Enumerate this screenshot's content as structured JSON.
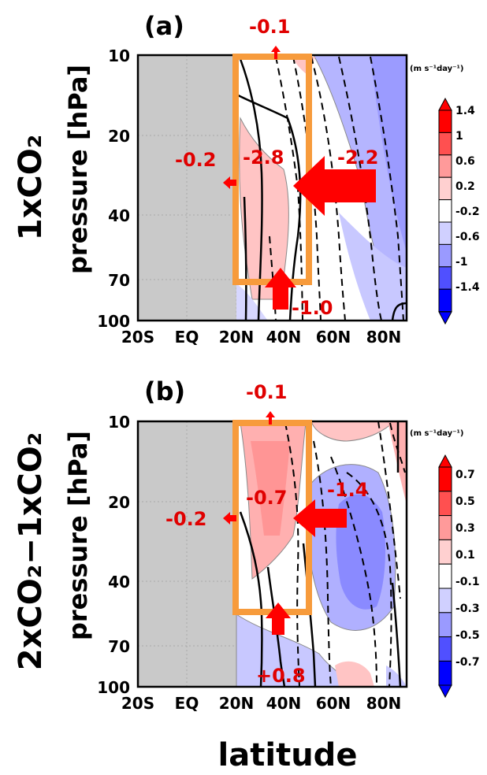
{
  "figure": {
    "xlabel": "latitude",
    "colors": {
      "land_mask": "#c9c9c9",
      "box": "#f79b3c",
      "arrow": "#ff0000",
      "annotation": "#e00000",
      "contour": "#000000"
    }
  },
  "chart_data": [
    {
      "type": "heatmap",
      "panel_label": "(a)",
      "row_label": "1xCO₂",
      "ylabel": "pressure [hPa]",
      "xlabel": "",
      "units": "(m s⁻¹day⁻¹)",
      "x_ticks": [
        "20S",
        "EQ",
        "20N",
        "40N",
        "60N",
        "80N"
      ],
      "x_tick_values": [
        -20,
        0,
        20,
        40,
        60,
        80
      ],
      "xlim": [
        -20,
        90
      ],
      "y_ticks": [
        "10",
        "20",
        "40",
        "70",
        "100"
      ],
      "y_tick_values": [
        10,
        20,
        40,
        70,
        100
      ],
      "ylim": [
        100,
        10
      ],
      "y_scale": "log",
      "masked_region_lat": [
        -20,
        20
      ],
      "box": {
        "lat": [
          20,
          50
        ],
        "pressure": [
          10,
          70
        ]
      },
      "colorbar": {
        "levels": [
          "1.4",
          "1",
          "0.6",
          "0.2",
          "-0.2",
          "-0.6",
          "-1",
          "-1.4"
        ],
        "colors": [
          "#ff0000",
          "#ff5050",
          "#ff9a9a",
          "#ffd0d0",
          "#ffffff",
          "#d0d0ff",
          "#9a9aff",
          "#5050ff",
          "#0000ff"
        ]
      },
      "fluxes": [
        {
          "label": "-0.1",
          "side": "top",
          "magnitude": 0.1
        },
        {
          "label": "-0.2",
          "side": "left",
          "magnitude": 0.2
        },
        {
          "label": "-2.8",
          "side": "center",
          "magnitude": 2.8
        },
        {
          "label": "-2.2",
          "side": "right",
          "magnitude": 2.2
        },
        {
          "label": "-1.0",
          "side": "bottom",
          "magnitude": 1.0
        }
      ]
    },
    {
      "type": "heatmap",
      "panel_label": "(b)",
      "row_label": "2xCO₂−1xCO₂",
      "ylabel": "pressure [hPa]",
      "xlabel": "",
      "units": "(m s⁻¹day⁻¹)",
      "x_ticks": [
        "20S",
        "EQ",
        "20N",
        "40N",
        "60N",
        "80N"
      ],
      "x_tick_values": [
        -20,
        0,
        20,
        40,
        60,
        80
      ],
      "xlim": [
        -20,
        90
      ],
      "y_ticks": [
        "10",
        "20",
        "40",
        "70",
        "100"
      ],
      "y_tick_values": [
        10,
        20,
        40,
        70,
        100
      ],
      "ylim": [
        100,
        10
      ],
      "y_scale": "log",
      "masked_region_lat": [
        -20,
        20
      ],
      "box": {
        "lat": [
          20,
          50
        ],
        "pressure": [
          10,
          50
        ]
      },
      "colorbar": {
        "levels": [
          "0.7",
          "0.5",
          "0.3",
          "0.1",
          "-0.1",
          "-0.3",
          "-0.5",
          "-0.7"
        ],
        "colors": [
          "#ff0000",
          "#ff5050",
          "#ff9a9a",
          "#ffd0d0",
          "#ffffff",
          "#d0d0ff",
          "#9a9aff",
          "#5050ff",
          "#0000ff"
        ]
      },
      "fluxes": [
        {
          "label": "-0.1",
          "side": "top",
          "magnitude": 0.1
        },
        {
          "label": "-0.2",
          "side": "left",
          "magnitude": 0.2
        },
        {
          "label": "-0.7",
          "side": "center",
          "magnitude": 0.7
        },
        {
          "label": "-1.4",
          "side": "right",
          "magnitude": 1.4
        },
        {
          "label": "+0.8",
          "side": "bottom",
          "magnitude": 0.8
        }
      ]
    }
  ]
}
